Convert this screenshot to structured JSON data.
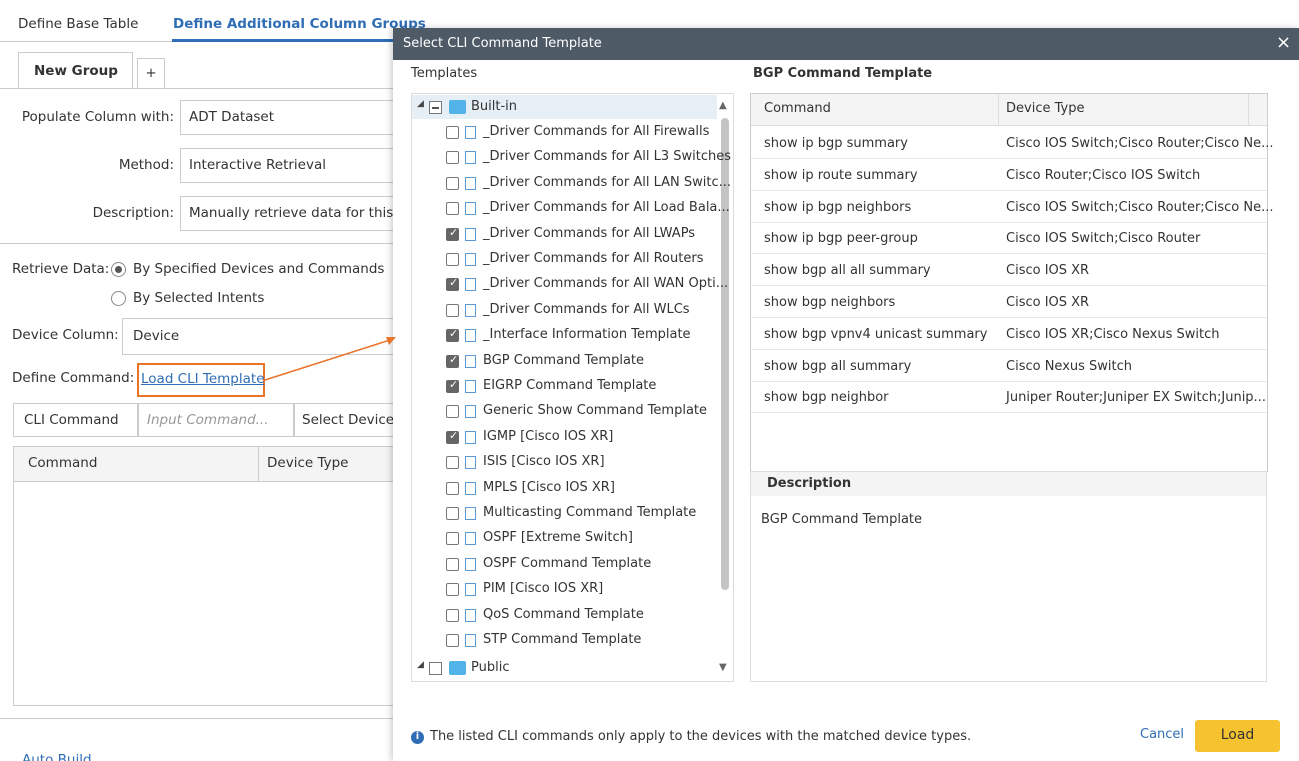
{
  "background": {
    "tabs": [
      "Define Base Table",
      "Define Additional Column Groups"
    ],
    "group_tabs": [
      "New Group",
      "+"
    ],
    "fields": [
      {
        "label": "Populate Column with:",
        "value": "ADT Dataset"
      },
      {
        "label": "Method:",
        "value": "Interactive Retrieval"
      },
      {
        "label": "Description:",
        "value": "Manually retrieve data for this"
      }
    ],
    "retrieve_label": "Retrieve Data:",
    "retrieve_options": [
      {
        "label": "By Specified Devices and Commands",
        "selected": true
      },
      {
        "label": "By Selected Intents",
        "selected": false
      }
    ],
    "device_column_label": "Device Column:",
    "device_column_value": "Device",
    "define_command_label": "Define Command:",
    "load_link": "Load CLI Template",
    "command_type": "CLI Command",
    "input_placeholder": "Input Command...",
    "select_device": "Select Device",
    "table_headers": [
      "Command",
      "Device Type"
    ],
    "bottom_link": "Auto Build"
  },
  "dialog": {
    "title": "Select CLI Command Template",
    "templates_label": "Templates",
    "folders": [
      {
        "name": "Built-in",
        "items": [
          {
            "label": "_Driver Commands for All Firewalls",
            "checked": false
          },
          {
            "label": "_Driver Commands for All L3 Switches",
            "checked": false
          },
          {
            "label": "_Driver Commands for All LAN Switc...",
            "checked": false
          },
          {
            "label": "_Driver Commands for All Load Bala...",
            "checked": false
          },
          {
            "label": "_Driver Commands for All LWAPs",
            "checked": true
          },
          {
            "label": "_Driver Commands for All Routers",
            "checked": false
          },
          {
            "label": "_Driver Commands for All WAN Opti...",
            "checked": true
          },
          {
            "label": "_Driver Commands for All WLCs",
            "checked": false
          },
          {
            "label": "_Interface Information Template",
            "checked": true
          },
          {
            "label": "BGP Command Template",
            "checked": true
          },
          {
            "label": "EIGRP Command Template",
            "checked": true
          },
          {
            "label": "Generic Show Command Template",
            "checked": false
          },
          {
            "label": "IGMP [Cisco IOS XR]",
            "checked": true
          },
          {
            "label": "ISIS [Cisco IOS XR]",
            "checked": false
          },
          {
            "label": "MPLS [Cisco IOS XR]",
            "checked": false
          },
          {
            "label": "Multicasting Command Template",
            "checked": false
          },
          {
            "label": "OSPF [Extreme Switch]",
            "checked": false
          },
          {
            "label": "OSPF Command Template",
            "checked": false
          },
          {
            "label": "PIM [Cisco IOS XR]",
            "checked": false
          },
          {
            "label": "QoS Command Template",
            "checked": false
          },
          {
            "label": "STP Command Template",
            "checked": false
          }
        ]
      },
      {
        "name": "Public",
        "items": []
      }
    ],
    "detail_title": "BGP Command Template",
    "columns": [
      "Command",
      "Device Type"
    ],
    "rows": [
      [
        "show ip bgp summary",
        "Cisco IOS Switch;Cisco Router;Cisco Ne..."
      ],
      [
        "show ip route summary",
        "Cisco Router;Cisco IOS Switch"
      ],
      [
        "show ip bgp neighbors",
        "Cisco IOS Switch;Cisco Router;Cisco Ne..."
      ],
      [
        "show ip bgp peer-group",
        "Cisco IOS Switch;Cisco Router"
      ],
      [
        "show bgp all all summary",
        "Cisco IOS XR"
      ],
      [
        "show bgp neighbors",
        "Cisco IOS XR"
      ],
      [
        "show bgp vpnv4 unicast summary",
        "Cisco IOS XR;Cisco Nexus Switch"
      ],
      [
        "show bgp all summary",
        "Cisco Nexus Switch"
      ],
      [
        "show bgp neighbor",
        "Juniper Router;Juniper EX Switch;Junip..."
      ]
    ],
    "description_label": "Description",
    "description": "BGP Command Template",
    "footer_note": "The listed CLI commands only apply to the devices with the matched device types.",
    "buttons": [
      "Cancel",
      "Load"
    ]
  }
}
